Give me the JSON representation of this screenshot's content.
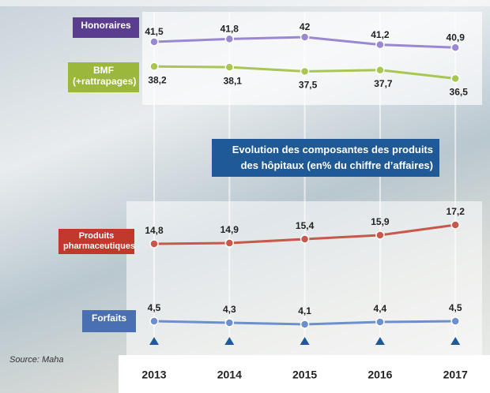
{
  "chart_data": {
    "type": "line",
    "title": "Evolution des composantes des produits des hôpitaux (en% du chiffre d’affaires)",
    "source": "Source: Maha",
    "categories": [
      "2013",
      "2014",
      "2015",
      "2016",
      "2017"
    ],
    "series": [
      {
        "name": "Honoraires",
        "color": "#9b88d2",
        "box_color": "#5b3d8f",
        "ylim": [
          39,
          44
        ],
        "values": [
          41.5,
          41.8,
          42,
          41.2,
          40.9
        ],
        "value_labels": [
          "41,5",
          "41,8",
          "42",
          "41,2",
          "40,9"
        ]
      },
      {
        "name": "BMF\n(+rattrapages)",
        "color": "#a9c553",
        "box_color": "#9bb83c",
        "ylim": [
          34,
          40
        ],
        "values": [
          38.2,
          38.1,
          37.5,
          37.7,
          36.5
        ],
        "value_labels": [
          "38,2",
          "38,1",
          "37,5",
          "37,7",
          "36,5"
        ]
      },
      {
        "name": "Produits\npharmaceutiques",
        "color": "#c9574c",
        "box_color": "#c0392b",
        "ylim": [
          12,
          20
        ],
        "values": [
          14.8,
          14.9,
          15.4,
          15.9,
          17.2
        ],
        "value_labels": [
          "14,8",
          "14,9",
          "15,4",
          "15,9",
          "17,2"
        ]
      },
      {
        "name": "Forfaits",
        "color": "#6d8fce",
        "box_color": "#4b70b2",
        "ylim": [
          2,
          7
        ],
        "values": [
          4.5,
          4.3,
          4.1,
          4.4,
          4.5
        ],
        "value_labels": [
          "4,5",
          "4,3",
          "4,1",
          "4,4",
          "4,5"
        ]
      }
    ]
  }
}
